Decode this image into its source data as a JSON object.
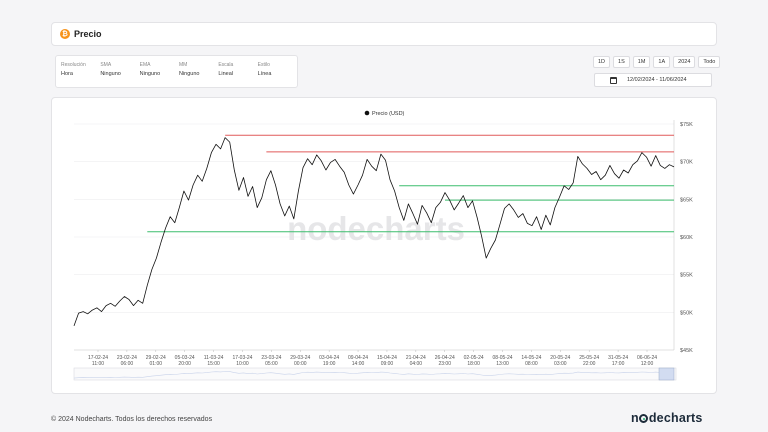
{
  "header": {
    "icon": "bitcoin-icon",
    "icon_glyph": "₿",
    "title": "Precio"
  },
  "settings": [
    {
      "label": "Resolución",
      "value": "Hora"
    },
    {
      "label": "SMA",
      "value": "Ninguno"
    },
    {
      "label": "EMA",
      "value": "Ninguno"
    },
    {
      "label": "MM",
      "value": "Ninguno"
    },
    {
      "label": "Escala",
      "value": "Lineal"
    },
    {
      "label": "Estilo",
      "value": "Línea"
    }
  ],
  "range_buttons": [
    "1D",
    "1S",
    "1M",
    "1A",
    "2024",
    "Todo"
  ],
  "date_range": "12/02/2024 - 11/06/2024",
  "watermark": "nodecharts",
  "footer": {
    "copyright": "© 2024 Nodecharts. Todos los derechos reservados",
    "logo": "nodecharts"
  },
  "colors": {
    "resistance": "#e05a5a",
    "support": "#3dbd6e",
    "line": "#111111",
    "btc": "#f7931a"
  },
  "chart_data": {
    "type": "line",
    "legend": "Precio (USD)",
    "legend_position": "top-center",
    "y_axis_side": "right",
    "ylim": [
      45000,
      75000
    ],
    "yticks": [
      45000,
      50000,
      55000,
      60000,
      65000,
      70000,
      75000
    ],
    "ytick_labels": [
      "$45K",
      "$50K",
      "$55K",
      "$60K",
      "$65K",
      "$70K",
      "$75K"
    ],
    "xtick_labels": [
      [
        "17-02-24",
        "11:00"
      ],
      [
        "23-02-24",
        "06:00"
      ],
      [
        "29-02-24",
        "01:00"
      ],
      [
        "05-03-24",
        "20:00"
      ],
      [
        "11-03-24",
        "15:00"
      ],
      [
        "17-03-24",
        "10:00"
      ],
      [
        "23-03-24",
        "05:00"
      ],
      [
        "29-03-24",
        "00:00"
      ],
      [
        "03-04-24",
        "19:00"
      ],
      [
        "09-04-24",
        "14:00"
      ],
      [
        "15-04-24",
        "09:00"
      ],
      [
        "21-04-24",
        "04:00"
      ],
      [
        "26-04-24",
        "23:00"
      ],
      [
        "02-05-24",
        "18:00"
      ],
      [
        "08-05-24",
        "13:00"
      ],
      [
        "14-05-24",
        "08:00"
      ],
      [
        "20-05-24",
        "03:00"
      ],
      [
        "25-05-24",
        "22:00"
      ],
      [
        "31-05-24",
        "17:00"
      ],
      [
        "06-06-24",
        "12:00"
      ]
    ],
    "series_points": [
      [
        0,
        48200
      ],
      [
        2,
        49900
      ],
      [
        4,
        50100
      ],
      [
        6,
        49800
      ],
      [
        8,
        50300
      ],
      [
        10,
        50600
      ],
      [
        12,
        50100
      ],
      [
        14,
        50900
      ],
      [
        16,
        51200
      ],
      [
        18,
        50800
      ],
      [
        20,
        51500
      ],
      [
        22,
        52100
      ],
      [
        24,
        51700
      ],
      [
        26,
        50900
      ],
      [
        28,
        51600
      ],
      [
        30,
        51200
      ],
      [
        32,
        53600
      ],
      [
        34,
        55700
      ],
      [
        36,
        57200
      ],
      [
        38,
        59300
      ],
      [
        40,
        61200
      ],
      [
        42,
        62700
      ],
      [
        44,
        61900
      ],
      [
        46,
        63900
      ],
      [
        48,
        66100
      ],
      [
        50,
        64900
      ],
      [
        52,
        66900
      ],
      [
        54,
        68200
      ],
      [
        56,
        67400
      ],
      [
        58,
        69100
      ],
      [
        60,
        71200
      ],
      [
        62,
        72300
      ],
      [
        64,
        71700
      ],
      [
        66,
        73200
      ],
      [
        68,
        72600
      ],
      [
        70,
        68900
      ],
      [
        72,
        66200
      ],
      [
        74,
        67900
      ],
      [
        76,
        65400
      ],
      [
        78,
        66700
      ],
      [
        80,
        63900
      ],
      [
        82,
        65200
      ],
      [
        84,
        67600
      ],
      [
        86,
        68800
      ],
      [
        88,
        66900
      ],
      [
        90,
        64400
      ],
      [
        92,
        62800
      ],
      [
        94,
        64100
      ],
      [
        96,
        62400
      ],
      [
        98,
        66100
      ],
      [
        100,
        69200
      ],
      [
        102,
        70400
      ],
      [
        104,
        69600
      ],
      [
        106,
        70900
      ],
      [
        108,
        70100
      ],
      [
        110,
        68900
      ],
      [
        112,
        69900
      ],
      [
        114,
        70300
      ],
      [
        116,
        69400
      ],
      [
        118,
        68600
      ],
      [
        120,
        66900
      ],
      [
        122,
        65700
      ],
      [
        124,
        66900
      ],
      [
        126,
        68200
      ],
      [
        128,
        70300
      ],
      [
        130,
        69400
      ],
      [
        132,
        68800
      ],
      [
        134,
        71000
      ],
      [
        136,
        70200
      ],
      [
        138,
        67600
      ],
      [
        140,
        66100
      ],
      [
        142,
        63900
      ],
      [
        144,
        62200
      ],
      [
        146,
        64400
      ],
      [
        148,
        63100
      ],
      [
        150,
        61700
      ],
      [
        152,
        64200
      ],
      [
        154,
        63200
      ],
      [
        156,
        61900
      ],
      [
        158,
        63900
      ],
      [
        160,
        64600
      ],
      [
        162,
        65900
      ],
      [
        164,
        64900
      ],
      [
        166,
        63600
      ],
      [
        168,
        64500
      ],
      [
        170,
        65500
      ],
      [
        172,
        63900
      ],
      [
        174,
        64800
      ],
      [
        176,
        62600
      ],
      [
        178,
        60100
      ],
      [
        180,
        57200
      ],
      [
        182,
        58500
      ],
      [
        184,
        59600
      ],
      [
        186,
        61700
      ],
      [
        188,
        63800
      ],
      [
        190,
        64400
      ],
      [
        192,
        63600
      ],
      [
        194,
        62600
      ],
      [
        196,
        63100
      ],
      [
        198,
        61800
      ],
      [
        200,
        61500
      ],
      [
        202,
        62700
      ],
      [
        204,
        61000
      ],
      [
        206,
        62900
      ],
      [
        208,
        61600
      ],
      [
        210,
        63900
      ],
      [
        212,
        65300
      ],
      [
        214,
        66800
      ],
      [
        216,
        66300
      ],
      [
        218,
        67200
      ],
      [
        220,
        70700
      ],
      [
        222,
        69700
      ],
      [
        224,
        69100
      ],
      [
        226,
        68300
      ],
      [
        228,
        68700
      ],
      [
        230,
        67600
      ],
      [
        232,
        68200
      ],
      [
        234,
        69500
      ],
      [
        236,
        68400
      ],
      [
        238,
        67800
      ],
      [
        240,
        68900
      ],
      [
        242,
        68500
      ],
      [
        244,
        69600
      ],
      [
        246,
        70100
      ],
      [
        248,
        71200
      ],
      [
        250,
        70600
      ],
      [
        252,
        69400
      ],
      [
        254,
        70800
      ],
      [
        256,
        69500
      ],
      [
        258,
        69100
      ],
      [
        260,
        69600
      ],
      [
        262,
        69300
      ]
    ],
    "x_count": 263,
    "resistance_lines": [
      {
        "value": 73500,
        "x_start": 66
      },
      {
        "value": 71300,
        "x_start": 84
      }
    ],
    "support_lines": [
      {
        "value": 66800,
        "x_start": 142
      },
      {
        "value": 64900,
        "x_start": 162
      },
      {
        "value": 60700,
        "x_start": 32
      }
    ]
  }
}
